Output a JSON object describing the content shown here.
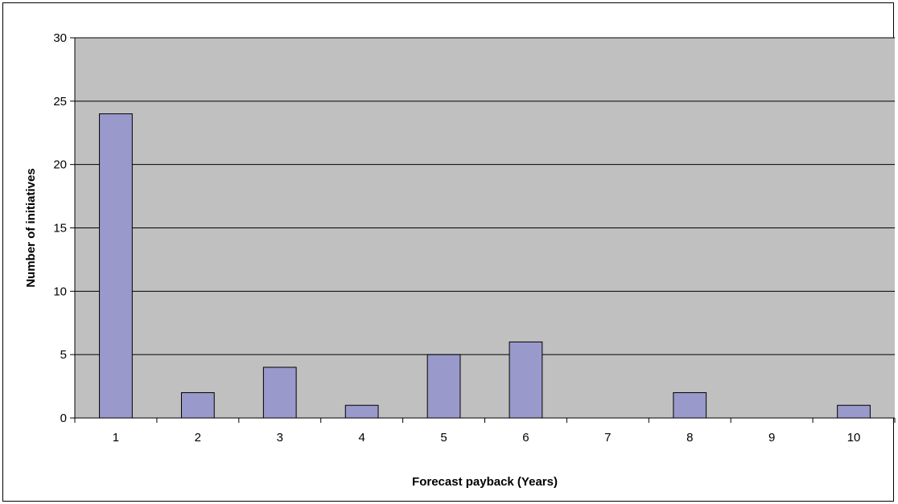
{
  "chart_data": {
    "type": "bar",
    "title": "",
    "xlabel": "Forecast payback (Years)",
    "ylabel": "Number of initiatives",
    "categories": [
      "1",
      "2",
      "3",
      "4",
      "5",
      "6",
      "7",
      "8",
      "9",
      "10"
    ],
    "values": [
      24,
      2,
      4,
      1,
      5,
      6,
      0,
      2,
      0,
      1
    ],
    "ylim": [
      0,
      30
    ],
    "yticks": [
      0,
      5,
      10,
      15,
      20,
      25,
      30
    ],
    "grid": true,
    "legend": "none",
    "colors": {
      "plot_background": "#c0c0c0",
      "bar_fill": "#9999cc",
      "bar_stroke": "#000000",
      "gridline": "#000000"
    }
  }
}
